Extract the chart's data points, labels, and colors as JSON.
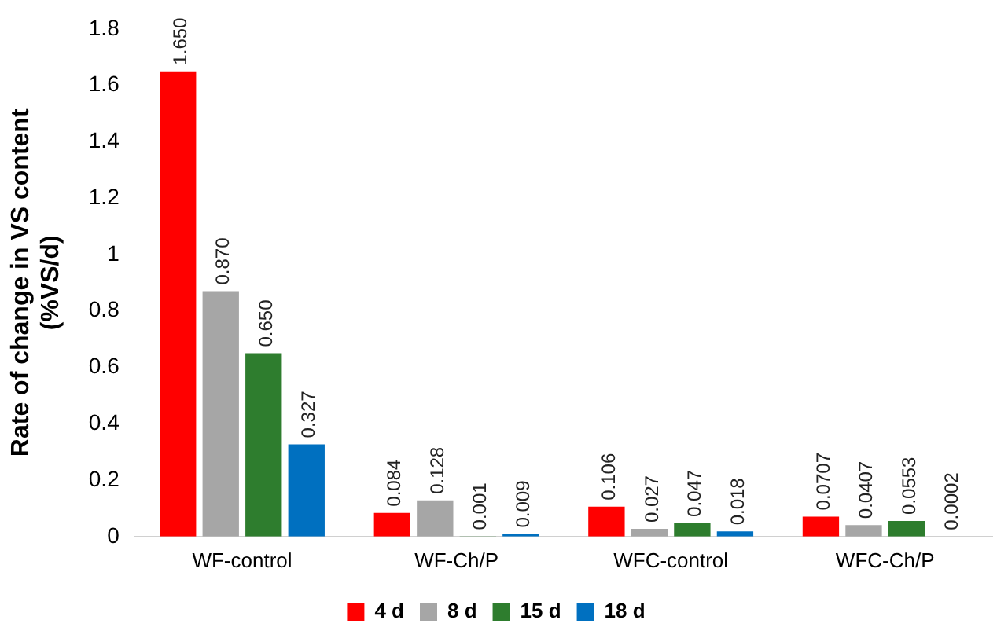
{
  "chart_data": {
    "type": "bar",
    "ylabel": "Rate of change in VS content\n(%VS/d)",
    "categories": [
      "WF-control",
      "WF-Ch/P",
      "WFC-control",
      "WFC-Ch/P"
    ],
    "series": [
      {
        "name": "4 d",
        "color": "#ff0000",
        "values": [
          1.65,
          0.084,
          0.106,
          0.0707
        ],
        "value_labels": [
          "1.650",
          "0.084",
          "0.106",
          "0.0707"
        ]
      },
      {
        "name": "8 d",
        "color": "#a6a6a6",
        "values": [
          0.87,
          0.128,
          0.027,
          0.0407
        ],
        "value_labels": [
          "0.870",
          "0.128",
          "0.027",
          "0.0407"
        ]
      },
      {
        "name": "15 d",
        "color": "#2e7d2e",
        "values": [
          0.65,
          0.001,
          0.047,
          0.0553
        ],
        "value_labels": [
          "0.650",
          "0.001",
          "0.047",
          "0.0553"
        ]
      },
      {
        "name": "18 d",
        "color": "#0070c0",
        "values": [
          0.327,
          0.009,
          0.018,
          0.0002
        ],
        "value_labels": [
          "0.327",
          "0.009",
          "0.018",
          "0.0002"
        ]
      }
    ],
    "ylim": [
      0,
      1.8
    ],
    "yticks": [
      0,
      0.2,
      0.4,
      0.6,
      0.8,
      1,
      1.2,
      1.4,
      1.6,
      1.8
    ],
    "grid": false,
    "legend": "bottom"
  }
}
